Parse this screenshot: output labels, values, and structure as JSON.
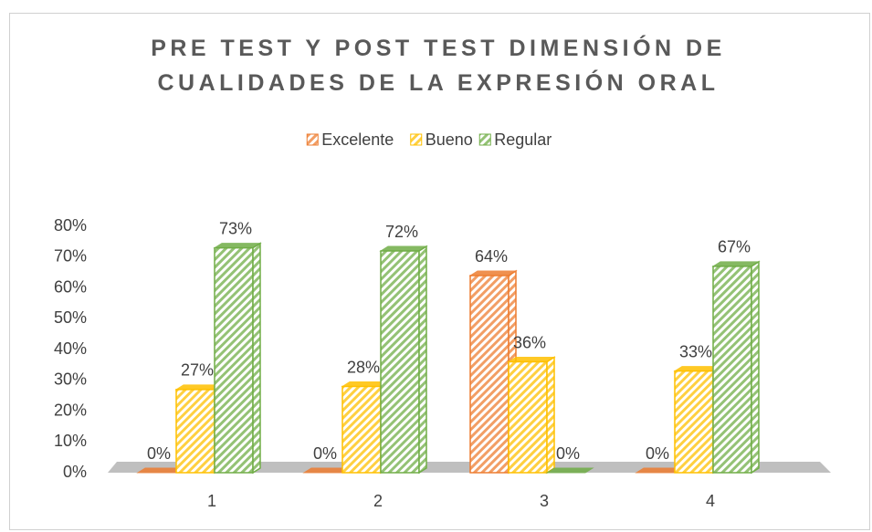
{
  "chart_data": {
    "type": "bar3d",
    "title": "PRE TEST Y POST TEST DIMENSIÓN DE CUALIDADES DE LA EXPRESIÓN ORAL",
    "categories": [
      "1",
      "2",
      "3",
      "4"
    ],
    "series": [
      {
        "name": "Excelente",
        "color": "#ed7d31",
        "values": [
          0,
          0,
          64,
          0
        ],
        "value_labels": [
          "0%",
          "0%",
          "64%",
          "0%"
        ]
      },
      {
        "name": "Bueno",
        "color": "#ffc000",
        "values": [
          27,
          28,
          36,
          33
        ],
        "value_labels": [
          "27%",
          "28%",
          "36%",
          "33%"
        ]
      },
      {
        "name": "Regular",
        "color": "#70ad47",
        "values": [
          73,
          72,
          0,
          67
        ],
        "value_labels": [
          "73%",
          "72%",
          "0%",
          "67%"
        ]
      }
    ],
    "ylim": [
      0,
      80
    ],
    "yticks": [
      {
        "value": 0,
        "label": "0%"
      },
      {
        "value": 10,
        "label": "10%"
      },
      {
        "value": 20,
        "label": "20%"
      },
      {
        "value": 30,
        "label": "30%"
      },
      {
        "value": 40,
        "label": "40%"
      },
      {
        "value": 50,
        "label": "50%"
      },
      {
        "value": 60,
        "label": "60%"
      },
      {
        "value": 70,
        "label": "70%"
      },
      {
        "value": 80,
        "label": "80%"
      }
    ],
    "legend": "top"
  }
}
